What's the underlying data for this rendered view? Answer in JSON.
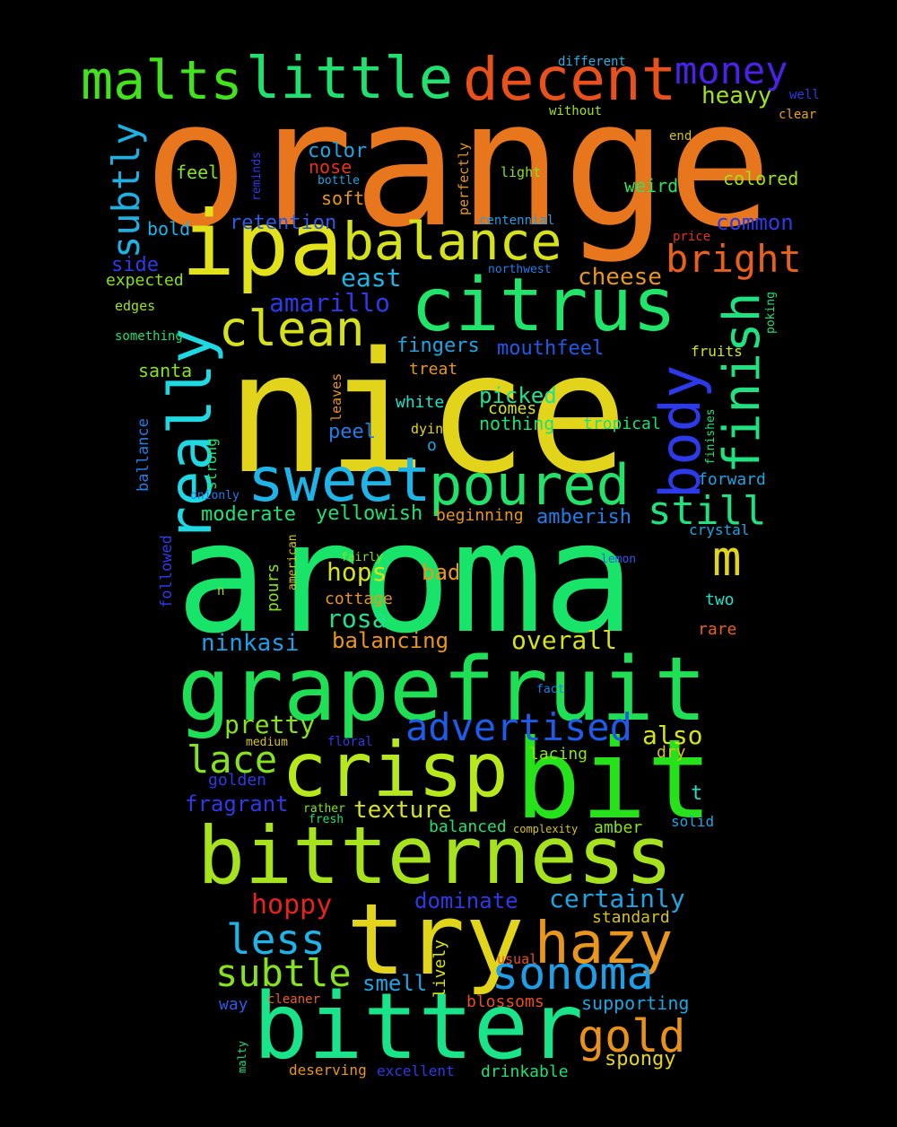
{
  "words": [
    {
      "text": "orange",
      "color": "#e8761c"
    },
    {
      "text": "nice",
      "color": "#e2d41a"
    },
    {
      "text": "aroma",
      "color": "#19e46a"
    },
    {
      "text": "grapefruit",
      "color": "#1fdf55"
    },
    {
      "text": "bitterness",
      "color": "#a6e21d"
    },
    {
      "text": "bitter",
      "color": "#19e48a"
    },
    {
      "text": "crisp",
      "color": "#b6e81c"
    },
    {
      "text": "bit",
      "color": "#26e21a"
    },
    {
      "text": "try",
      "color": "#e2d41a"
    },
    {
      "text": "citrus",
      "color": "#20e56a"
    },
    {
      "text": "ipa",
      "color": "#e2e21a"
    },
    {
      "text": "sweet",
      "color": "#1fb4e8"
    },
    {
      "text": "poured",
      "color": "#22e26a"
    },
    {
      "text": "hazy",
      "color": "#e8961c"
    },
    {
      "text": "little",
      "color": "#20e070"
    },
    {
      "text": "malts",
      "color": "#42e21d"
    },
    {
      "text": "decent",
      "color": "#e8501c"
    },
    {
      "text": "balance",
      "color": "#d5e21a"
    },
    {
      "text": "clean",
      "color": "#d5e21a"
    },
    {
      "text": "really",
      "color": "#1fd8e2"
    },
    {
      "text": "body",
      "color": "#2d3ae8"
    },
    {
      "text": "finish",
      "color": "#20e080"
    },
    {
      "text": "sonoma",
      "color": "#1f9ee8"
    },
    {
      "text": "gold",
      "color": "#e8921c"
    },
    {
      "text": "money",
      "color": "#4b22e8"
    },
    {
      "text": "subtly",
      "color": "#1fb0e2"
    },
    {
      "text": "bright",
      "color": "#e8601c"
    },
    {
      "text": "still",
      "color": "#20e080"
    },
    {
      "text": "m",
      "color": "#e2d41a"
    },
    {
      "text": "advertised",
      "color": "#1f5ae8"
    },
    {
      "text": "less",
      "color": "#1fb4e8"
    },
    {
      "text": "subtle",
      "color": "#86e21d"
    },
    {
      "text": "lace",
      "color": "#86e21d"
    },
    {
      "text": "amarillo",
      "color": "#2d3ae8"
    },
    {
      "text": "heavy",
      "color": "#9ee21d"
    },
    {
      "text": "east",
      "color": "#1fb4e8"
    },
    {
      "text": "cheese",
      "color": "#e8961c"
    },
    {
      "text": "common",
      "color": "#2d3ae8"
    },
    {
      "text": "colored",
      "color": "#9ee21d"
    },
    {
      "text": "weird",
      "color": "#2ee260"
    },
    {
      "text": "color",
      "color": "#1fa4e2"
    },
    {
      "text": "nose",
      "color": "#e8321c"
    },
    {
      "text": "soft",
      "color": "#e8961c"
    },
    {
      "text": "feel",
      "color": "#86e21d"
    },
    {
      "text": "bold",
      "color": "#1fb4e8"
    },
    {
      "text": "retention",
      "color": "#2d5ae8"
    },
    {
      "text": "side",
      "color": "#2d3ae8"
    },
    {
      "text": "expected",
      "color": "#86e21d"
    },
    {
      "text": "edges",
      "color": "#9ee21d"
    },
    {
      "text": "something",
      "color": "#20e070"
    },
    {
      "text": "santa",
      "color": "#86e21d"
    },
    {
      "text": "fingers",
      "color": "#1fa4e2"
    },
    {
      "text": "mouthfeel",
      "color": "#1f5ae8"
    },
    {
      "text": "treat",
      "color": "#e8961c"
    },
    {
      "text": "white",
      "color": "#1fe2c8"
    },
    {
      "text": "picked",
      "color": "#1fe290"
    },
    {
      "text": "comes",
      "color": "#d5e21a"
    },
    {
      "text": "nothing",
      "color": "#20e070"
    },
    {
      "text": "tropical",
      "color": "#20e070"
    },
    {
      "text": "dying",
      "color": "#e2d41a"
    },
    {
      "text": "peel",
      "color": "#1f7ee8"
    },
    {
      "text": "o",
      "color": "#1fa4e2"
    },
    {
      "text": "forward",
      "color": "#1fa4e2"
    },
    {
      "text": "fruits",
      "color": "#d5e21a"
    },
    {
      "text": "moderate",
      "color": "#20e070"
    },
    {
      "text": "yellowish",
      "color": "#20e070"
    },
    {
      "text": "beginning",
      "color": "#e8961c"
    },
    {
      "text": "amberish",
      "color": "#1f7ee8"
    },
    {
      "text": "crystal",
      "color": "#1fa4e2"
    },
    {
      "text": "hops",
      "color": "#d5e21a"
    },
    {
      "text": "bad",
      "color": "#e8961c"
    },
    {
      "text": "rosa",
      "color": "#20e090"
    },
    {
      "text": "cottage",
      "color": "#e8961c"
    },
    {
      "text": "two",
      "color": "#1fe2c8"
    },
    {
      "text": "ninkasi",
      "color": "#1f9ee8"
    },
    {
      "text": "balancing",
      "color": "#e8961c"
    },
    {
      "text": "overall",
      "color": "#d5e21a"
    },
    {
      "text": "rare",
      "color": "#e8601c"
    },
    {
      "text": "pretty",
      "color": "#86e21d"
    },
    {
      "text": "also",
      "color": "#d5e21a"
    },
    {
      "text": "lacing",
      "color": "#86e21d"
    },
    {
      "text": "dry",
      "color": "#d5c21a"
    },
    {
      "text": "golden",
      "color": "#2d3ae8"
    },
    {
      "text": "fragrant",
      "color": "#2d3ae8"
    },
    {
      "text": "texture",
      "color": "#d5e21a"
    },
    {
      "text": "t",
      "color": "#1fe2c8"
    },
    {
      "text": "balanced",
      "color": "#20e070"
    },
    {
      "text": "amber",
      "color": "#86e21d"
    },
    {
      "text": "solid",
      "color": "#1fa4e2"
    },
    {
      "text": "hoppy",
      "color": "#e8221c"
    },
    {
      "text": "dominate",
      "color": "#2d3ae8"
    },
    {
      "text": "certainly",
      "color": "#1fa4e2"
    },
    {
      "text": "standard",
      "color": "#d5c21a"
    },
    {
      "text": "smell",
      "color": "#1fa4e2"
    },
    {
      "text": "usual",
      "color": "#e8501c"
    },
    {
      "text": "supporting",
      "color": "#1fa4e2"
    },
    {
      "text": "blossoms",
      "color": "#e8501c"
    },
    {
      "text": "way",
      "color": "#2d5ae8"
    },
    {
      "text": "cleaner",
      "color": "#e8601c"
    },
    {
      "text": "spongy",
      "color": "#e2d41a"
    },
    {
      "text": "deserving",
      "color": "#e8961c"
    },
    {
      "text": "excellent",
      "color": "#2d3ae8"
    },
    {
      "text": "drinkable",
      "color": "#20e070"
    },
    {
      "text": "different",
      "color": "#1fb4e8"
    },
    {
      "text": "well",
      "color": "#2d3ae8"
    },
    {
      "text": "clear",
      "color": "#e8a21c"
    },
    {
      "text": "without",
      "color": "#9ee21d"
    },
    {
      "text": "end",
      "color": "#d5c21a"
    },
    {
      "text": "light",
      "color": "#86e21d"
    },
    {
      "text": "bottle",
      "color": "#1fa4e2"
    },
    {
      "text": "centennial",
      "color": "#1f9ee8"
    },
    {
      "text": "price",
      "color": "#e8321c"
    },
    {
      "text": "northwest",
      "color": "#1f7ee8"
    },
    {
      "text": "medium",
      "color": "#d5c21a"
    },
    {
      "text": "floral",
      "color": "#2d3ae8"
    },
    {
      "text": "rather",
      "color": "#86e21d"
    },
    {
      "text": "fresh",
      "color": "#20e070"
    },
    {
      "text": "complexity",
      "color": "#d5c21a"
    },
    {
      "text": "fairly",
      "color": "#86e21d"
    },
    {
      "text": "n",
      "color": "#9ee21d"
    },
    {
      "text": "lemon",
      "color": "#2d5ae8"
    },
    {
      "text": "fact",
      "color": "#1f7ee8"
    },
    {
      "text": "onionly",
      "color": "#1f7ee8"
    },
    {
      "text": "reminds",
      "color": "#2d3ae8"
    },
    {
      "text": "perfectly",
      "color": "#e8961c"
    },
    {
      "text": "poking",
      "color": "#20e070"
    },
    {
      "text": "leaves",
      "color": "#e8961c"
    },
    {
      "text": "strong",
      "color": "#20e070"
    },
    {
      "text": "ballance",
      "color": "#1f7ee8"
    },
    {
      "text": "finishes",
      "color": "#20e070"
    },
    {
      "text": "followed",
      "color": "#2d3ae8"
    },
    {
      "text": "american",
      "color": "#d5c21a"
    },
    {
      "text": "pours",
      "color": "#86e21d"
    },
    {
      "text": "lively",
      "color": "#d5e21a"
    },
    {
      "text": "malty",
      "color": "#20e070"
    }
  ]
}
